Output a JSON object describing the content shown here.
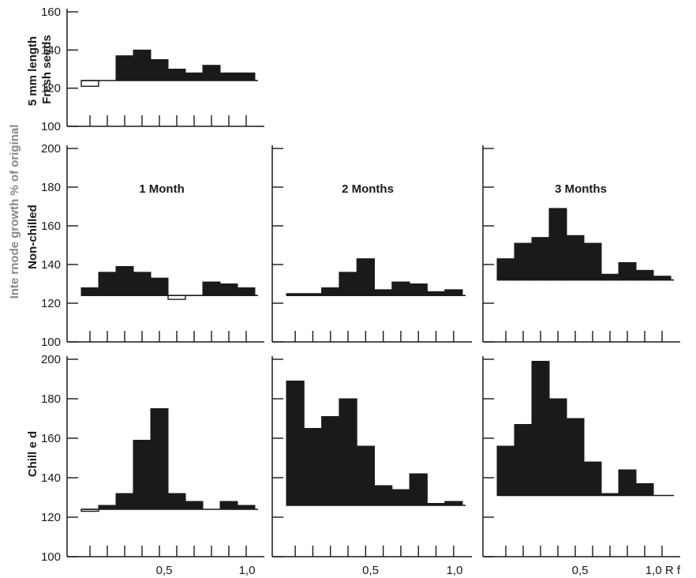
{
  "figure": {
    "ylabel": "Inte rnode growth % of original",
    "row_labels": {
      "fresh": [
        "5 mm length",
        "Fresh seeds"
      ],
      "nonchilled": "Non-chilled",
      "chilled": "Chill e d"
    },
    "col_titles": [
      "1 Month",
      "2 Months",
      "3 Months"
    ],
    "x_tick_labels": {
      "half": "0,5",
      "one": "1,0",
      "one_rf": "1,0 R f"
    }
  },
  "chart_data": [
    {
      "id": "fresh",
      "type": "bar",
      "title": "",
      "xlabel": "",
      "ylabel": "",
      "xlim": [
        0,
        1
      ],
      "ylim": [
        100,
        160
      ],
      "yticks": [
        100,
        120,
        140,
        160
      ],
      "control": 124,
      "bins": [
        [
          0.0,
          0.1,
          121
        ],
        [
          0.1,
          0.2,
          124
        ],
        [
          0.2,
          0.3,
          137
        ],
        [
          0.3,
          0.4,
          140
        ],
        [
          0.4,
          0.5,
          135
        ],
        [
          0.5,
          0.6,
          130
        ],
        [
          0.6,
          0.7,
          128
        ],
        [
          0.7,
          0.8,
          132
        ],
        [
          0.8,
          0.9,
          128
        ],
        [
          0.9,
          1.0,
          128
        ]
      ]
    },
    {
      "id": "nonchilled-1",
      "type": "bar",
      "title": "1 Month",
      "xlabel": "",
      "ylabel": "",
      "xlim": [
        0,
        1
      ],
      "ylim": [
        100,
        200
      ],
      "yticks": [
        100,
        120,
        140,
        160,
        180,
        200
      ],
      "control": 124,
      "bins": [
        [
          0.0,
          0.1,
          128
        ],
        [
          0.1,
          0.2,
          136
        ],
        [
          0.2,
          0.3,
          139
        ],
        [
          0.3,
          0.4,
          136
        ],
        [
          0.4,
          0.5,
          133
        ],
        [
          0.5,
          0.6,
          122
        ],
        [
          0.6,
          0.7,
          124
        ],
        [
          0.7,
          0.8,
          131
        ],
        [
          0.8,
          0.9,
          130
        ],
        [
          0.9,
          1.0,
          128
        ]
      ]
    },
    {
      "id": "nonchilled-2",
      "type": "bar",
      "title": "2 Months",
      "xlabel": "",
      "ylabel": "",
      "xlim": [
        0,
        1
      ],
      "ylim": [
        100,
        200
      ],
      "yticks": [
        100,
        120,
        140,
        160,
        180,
        200
      ],
      "control": 124,
      "bins": [
        [
          0.0,
          0.1,
          125
        ],
        [
          0.1,
          0.2,
          125
        ],
        [
          0.2,
          0.3,
          128
        ],
        [
          0.3,
          0.4,
          136
        ],
        [
          0.4,
          0.5,
          143
        ],
        [
          0.5,
          0.6,
          127
        ],
        [
          0.6,
          0.7,
          131
        ],
        [
          0.7,
          0.8,
          130
        ],
        [
          0.8,
          0.9,
          126
        ],
        [
          0.9,
          1.0,
          127
        ]
      ]
    },
    {
      "id": "nonchilled-3",
      "type": "bar",
      "title": "3 Months",
      "xlabel": "",
      "ylabel": "",
      "xlim": [
        0,
        1
      ],
      "ylim": [
        100,
        200
      ],
      "yticks": [
        100,
        120,
        140,
        160,
        180,
        200
      ],
      "control": 132,
      "bins": [
        [
          0.0,
          0.1,
          143
        ],
        [
          0.1,
          0.2,
          151
        ],
        [
          0.2,
          0.3,
          154
        ],
        [
          0.3,
          0.4,
          169
        ],
        [
          0.4,
          0.5,
          155
        ],
        [
          0.5,
          0.6,
          151
        ],
        [
          0.6,
          0.7,
          135
        ],
        [
          0.7,
          0.8,
          141
        ],
        [
          0.8,
          0.9,
          137
        ],
        [
          0.9,
          1.0,
          134
        ]
      ]
    },
    {
      "id": "chilled-1",
      "type": "bar",
      "title": "",
      "xlabel": "",
      "ylabel": "",
      "xlim": [
        0,
        1
      ],
      "ylim": [
        100,
        200
      ],
      "yticks": [
        100,
        120,
        140,
        160,
        180,
        200
      ],
      "control": 124,
      "bins": [
        [
          0.0,
          0.1,
          123
        ],
        [
          0.1,
          0.2,
          126
        ],
        [
          0.2,
          0.3,
          132
        ],
        [
          0.3,
          0.4,
          159
        ],
        [
          0.4,
          0.5,
          175
        ],
        [
          0.5,
          0.6,
          132
        ],
        [
          0.6,
          0.7,
          128
        ],
        [
          0.7,
          0.8,
          124
        ],
        [
          0.8,
          0.9,
          128
        ],
        [
          0.9,
          1.0,
          126
        ]
      ]
    },
    {
      "id": "chilled-2",
      "type": "bar",
      "title": "",
      "xlabel": "",
      "ylabel": "",
      "xlim": [
        0,
        1
      ],
      "ylim": [
        100,
        200
      ],
      "yticks": [
        100,
        120,
        140,
        160,
        180,
        200
      ],
      "control": 126,
      "bins": [
        [
          0.0,
          0.1,
          189
        ],
        [
          0.1,
          0.2,
          165
        ],
        [
          0.2,
          0.3,
          171
        ],
        [
          0.3,
          0.4,
          180
        ],
        [
          0.4,
          0.5,
          156
        ],
        [
          0.5,
          0.6,
          136
        ],
        [
          0.6,
          0.7,
          134
        ],
        [
          0.7,
          0.8,
          142
        ],
        [
          0.8,
          0.9,
          127
        ],
        [
          0.9,
          1.0,
          128
        ]
      ]
    },
    {
      "id": "chilled-3",
      "type": "bar",
      "title": "",
      "xlabel": "",
      "ylabel": "",
      "xlim": [
        0,
        1
      ],
      "ylim": [
        100,
        200
      ],
      "yticks": [
        100,
        120,
        140,
        160,
        180,
        200
      ],
      "control": 131,
      "bins": [
        [
          0.0,
          0.1,
          156
        ],
        [
          0.1,
          0.2,
          167
        ],
        [
          0.2,
          0.3,
          199
        ],
        [
          0.3,
          0.4,
          180
        ],
        [
          0.4,
          0.5,
          170
        ],
        [
          0.5,
          0.6,
          148
        ],
        [
          0.6,
          0.7,
          132
        ],
        [
          0.7,
          0.8,
          144
        ],
        [
          0.8,
          0.9,
          137
        ],
        [
          0.9,
          1.0,
          131
        ]
      ]
    }
  ]
}
